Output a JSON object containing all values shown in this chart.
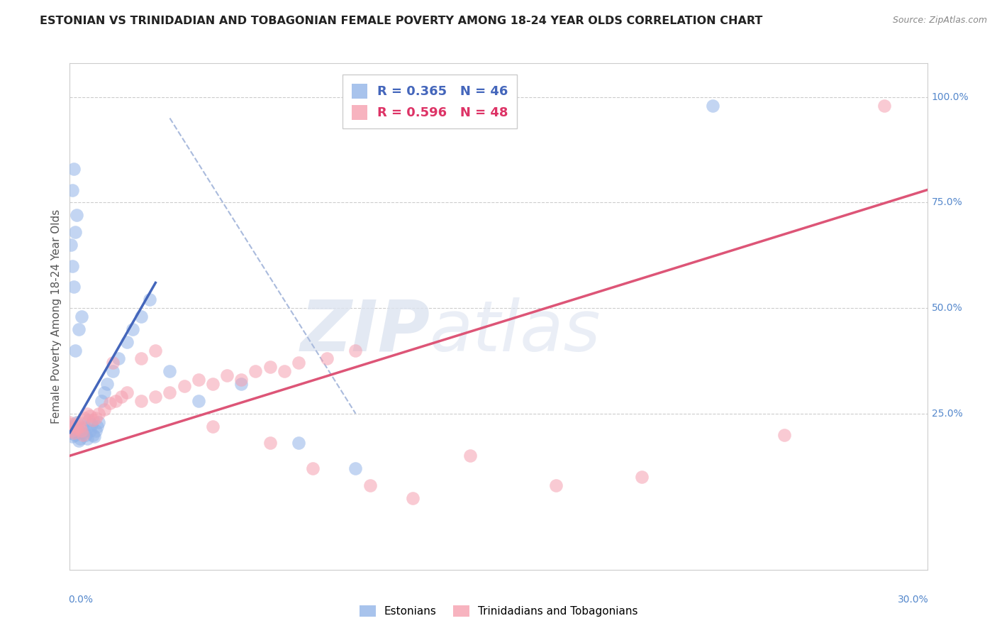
{
  "title": "ESTONIAN VS TRINIDADIAN AND TOBAGONIAN FEMALE POVERTY AMONG 18-24 YEAR OLDS CORRELATION CHART",
  "source": "Source: ZipAtlas.com",
  "ylabel": "Female Poverty Among 18-24 Year Olds",
  "legend_r1": "R = 0.365   N = 46",
  "legend_r2": "R = 0.596   N = 48",
  "legend_label1": "Estonians",
  "legend_label2": "Trinidadians and Tobagonians",
  "blue_color": "#92b4e8",
  "pink_color": "#f5a0b0",
  "blue_line_color": "#4466bb",
  "pink_line_color": "#dd5577",
  "diag_line_color": "#aabbdd",
  "x_min": 0,
  "x_max": 30,
  "y_min": -12,
  "y_max": 108,
  "blue_scatter": [
    [
      0.0,
      20.5
    ],
    [
      0.05,
      22.0
    ],
    [
      0.1,
      19.5
    ],
    [
      0.15,
      21.0
    ],
    [
      0.2,
      20.0
    ],
    [
      0.25,
      23.0
    ],
    [
      0.3,
      18.5
    ],
    [
      0.35,
      19.0
    ],
    [
      0.4,
      20.5
    ],
    [
      0.45,
      21.5
    ],
    [
      0.5,
      22.0
    ],
    [
      0.55,
      20.0
    ],
    [
      0.6,
      19.0
    ],
    [
      0.65,
      23.5
    ],
    [
      0.7,
      21.0
    ],
    [
      0.75,
      22.5
    ],
    [
      0.8,
      20.0
    ],
    [
      0.85,
      19.5
    ],
    [
      0.9,
      21.0
    ],
    [
      0.95,
      22.0
    ],
    [
      1.0,
      23.0
    ],
    [
      1.1,
      28.0
    ],
    [
      1.2,
      30.0
    ],
    [
      1.3,
      32.0
    ],
    [
      1.5,
      35.0
    ],
    [
      1.7,
      38.0
    ],
    [
      2.0,
      42.0
    ],
    [
      2.2,
      45.0
    ],
    [
      2.5,
      48.0
    ],
    [
      2.8,
      52.0
    ],
    [
      0.2,
      40.0
    ],
    [
      0.3,
      45.0
    ],
    [
      0.4,
      48.0
    ],
    [
      0.15,
      55.0
    ],
    [
      0.1,
      60.0
    ],
    [
      0.05,
      65.0
    ],
    [
      0.2,
      68.0
    ],
    [
      0.25,
      72.0
    ],
    [
      0.1,
      78.0
    ],
    [
      0.15,
      83.0
    ],
    [
      3.5,
      35.0
    ],
    [
      6.0,
      32.0
    ],
    [
      4.5,
      28.0
    ],
    [
      8.0,
      18.0
    ],
    [
      10.0,
      12.0
    ],
    [
      22.5,
      98.0
    ]
  ],
  "pink_scatter": [
    [
      0.0,
      23.0
    ],
    [
      0.05,
      22.5
    ],
    [
      0.1,
      21.0
    ],
    [
      0.15,
      20.5
    ],
    [
      0.2,
      22.0
    ],
    [
      0.25,
      21.5
    ],
    [
      0.3,
      23.0
    ],
    [
      0.35,
      22.0
    ],
    [
      0.4,
      21.0
    ],
    [
      0.45,
      20.0
    ],
    [
      0.5,
      24.0
    ],
    [
      0.6,
      25.0
    ],
    [
      0.7,
      24.5
    ],
    [
      0.8,
      23.5
    ],
    [
      0.9,
      24.0
    ],
    [
      1.0,
      25.0
    ],
    [
      1.2,
      26.0
    ],
    [
      1.4,
      27.5
    ],
    [
      1.6,
      28.0
    ],
    [
      1.8,
      29.0
    ],
    [
      2.0,
      30.0
    ],
    [
      2.5,
      28.0
    ],
    [
      3.0,
      29.0
    ],
    [
      3.5,
      30.0
    ],
    [
      4.0,
      31.5
    ],
    [
      4.5,
      33.0
    ],
    [
      5.0,
      32.0
    ],
    [
      5.5,
      34.0
    ],
    [
      6.0,
      33.0
    ],
    [
      6.5,
      35.0
    ],
    [
      7.0,
      36.0
    ],
    [
      7.5,
      35.0
    ],
    [
      8.0,
      37.0
    ],
    [
      9.0,
      38.0
    ],
    [
      10.0,
      40.0
    ],
    [
      1.5,
      37.0
    ],
    [
      2.5,
      38.0
    ],
    [
      3.0,
      40.0
    ],
    [
      5.0,
      22.0
    ],
    [
      7.0,
      18.0
    ],
    [
      8.5,
      12.0
    ],
    [
      10.5,
      8.0
    ],
    [
      12.0,
      5.0
    ],
    [
      17.0,
      8.0
    ],
    [
      20.0,
      10.0
    ],
    [
      14.0,
      15.0
    ],
    [
      25.0,
      20.0
    ],
    [
      28.5,
      98.0
    ]
  ],
  "blue_line": [
    [
      0.0,
      20.5
    ],
    [
      3.0,
      56.0
    ]
  ],
  "pink_line": [
    [
      0.0,
      15.0
    ],
    [
      30.0,
      78.0
    ]
  ],
  "diag_line": [
    [
      3.5,
      95.0
    ],
    [
      10.0,
      25.0
    ]
  ]
}
